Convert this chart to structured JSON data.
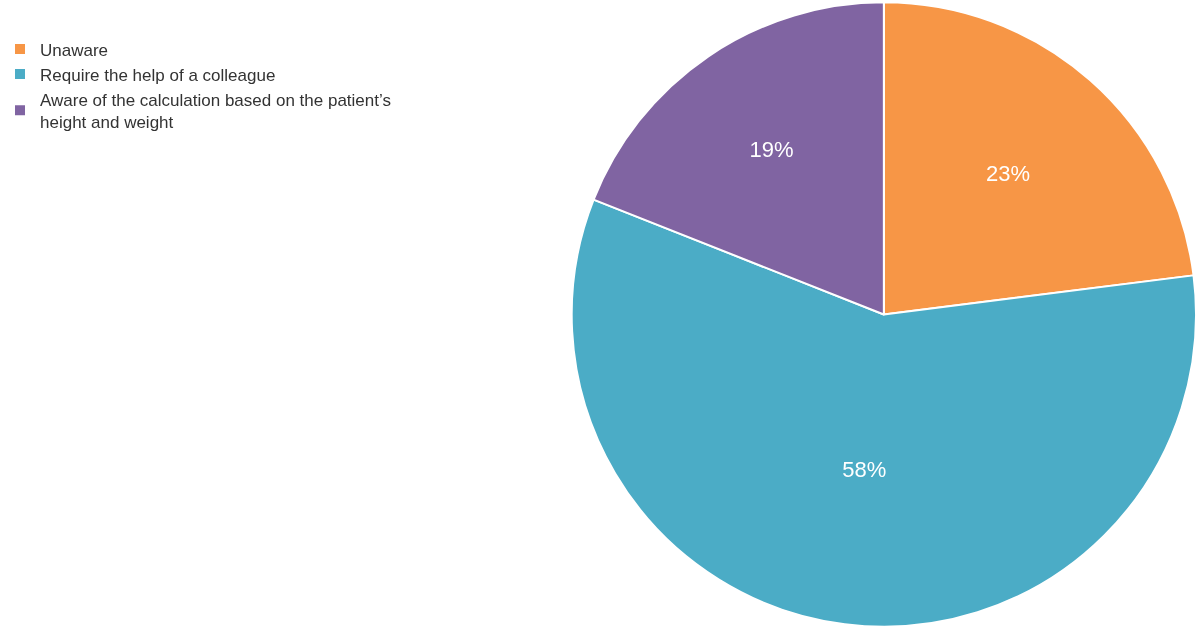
{
  "chart_data": {
    "type": "pie",
    "categories": [
      "Unaware",
      "Require the help of a colleague",
      "Aware of the calculation based on the patient’s height and weight"
    ],
    "values": [
      23,
      58,
      19
    ],
    "colors": [
      "#f79646",
      "#4bacc6",
      "#8064a2"
    ],
    "value_labels": [
      "23%",
      "58%",
      "19%"
    ],
    "legend": "top left"
  }
}
